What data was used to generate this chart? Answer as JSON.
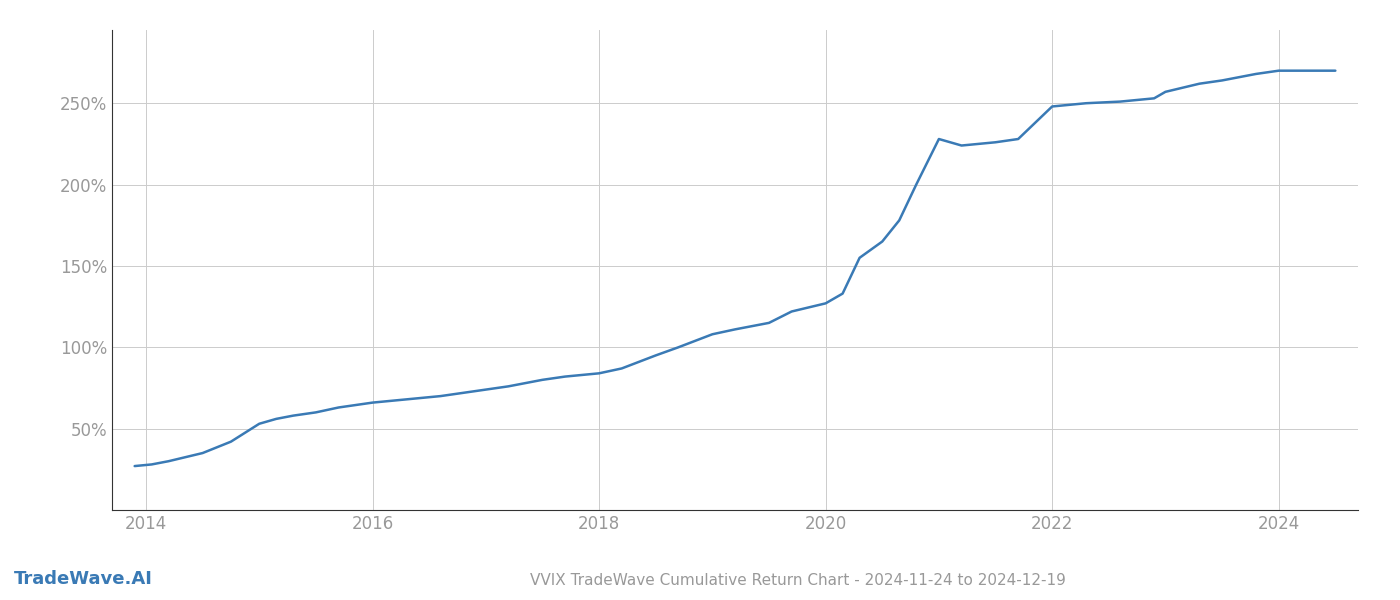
{
  "title": "VVIX TradeWave Cumulative Return Chart - 2024-11-24 to 2024-12-19",
  "watermark": "TradeWave.AI",
  "line_color": "#3a7ab5",
  "background_color": "#ffffff",
  "grid_color": "#cccccc",
  "tick_color": "#999999",
  "spine_color": "#333333",
  "x_values": [
    2013.9,
    2014.05,
    2014.2,
    2014.5,
    2014.75,
    2015.0,
    2015.15,
    2015.3,
    2015.5,
    2015.7,
    2016.0,
    2016.3,
    2016.6,
    2016.9,
    2017.2,
    2017.5,
    2017.7,
    2018.0,
    2018.2,
    2018.5,
    2018.7,
    2019.0,
    2019.2,
    2019.5,
    2019.7,
    2020.0,
    2020.15,
    2020.3,
    2020.5,
    2020.65,
    2020.8,
    2021.0,
    2021.2,
    2021.5,
    2021.7,
    2022.0,
    2022.3,
    2022.6,
    2022.9,
    2023.0,
    2023.3,
    2023.5,
    2023.8,
    2024.0,
    2024.3,
    2024.5
  ],
  "y_values": [
    27,
    28,
    30,
    35,
    42,
    53,
    56,
    58,
    60,
    63,
    66,
    68,
    70,
    73,
    76,
    80,
    82,
    84,
    87,
    95,
    100,
    108,
    111,
    115,
    122,
    127,
    133,
    155,
    165,
    178,
    200,
    228,
    224,
    226,
    228,
    248,
    250,
    251,
    253,
    257,
    262,
    264,
    268,
    270,
    270,
    270
  ],
  "xlim": [
    2013.7,
    2024.7
  ],
  "ylim": [
    0,
    295
  ],
  "yticks": [
    50,
    100,
    150,
    200,
    250
  ],
  "ytick_labels": [
    "50%",
    "100%",
    "150%",
    "200%",
    "250%"
  ],
  "xticks": [
    2014,
    2016,
    2018,
    2020,
    2022,
    2024
  ],
  "line_width": 1.8,
  "title_fontsize": 11,
  "tick_fontsize": 12,
  "watermark_fontsize": 13
}
